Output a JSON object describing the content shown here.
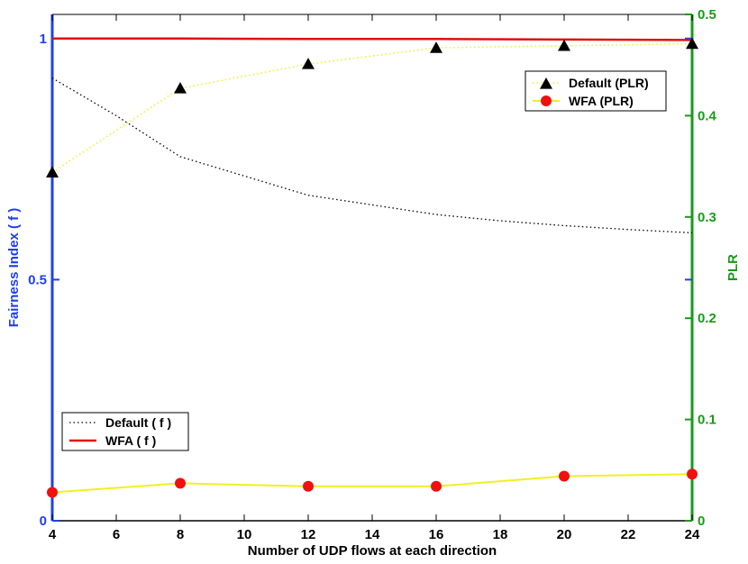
{
  "chart_data": {
    "type": "line",
    "xlabel": "Number of UDP flows at each direction",
    "ylabel_left": "Fairness Index ( f )",
    "ylabel_right": "PLR",
    "x_ticks": [
      4,
      6,
      8,
      10,
      12,
      14,
      16,
      18,
      20,
      22,
      24
    ],
    "xlim": [
      4,
      24
    ],
    "ylim_left": [
      0,
      1.05
    ],
    "ylim_right": [
      0,
      0.5
    ],
    "y_left_ticks": [
      0,
      0.5,
      1
    ],
    "y_left_tick_labels": [
      "0",
      "0.5",
      "1"
    ],
    "y_right_ticks": [
      0,
      0.1,
      0.2,
      0.3,
      0.4,
      0.5
    ],
    "y_right_tick_labels": [
      "0",
      "0.1",
      "0.2",
      "0.3",
      "0.4",
      "0.5"
    ],
    "grid": false,
    "colors": {
      "left_axis": "#1f3ff0",
      "right_axis": "#1a9a1a",
      "default_f": "#000000",
      "wfa_f": "#e01010",
      "plr_line": "#f0f020",
      "default_plr_marker": "#000000",
      "wfa_plr_marker": "#f01010"
    },
    "series": [
      {
        "name": "Default ( f )",
        "axis": "left",
        "style": "dotted",
        "x": [
          4,
          6,
          8,
          10,
          12,
          14,
          16,
          18,
          20,
          22,
          24
        ],
        "values": [
          0.918,
          0.84,
          0.755,
          0.715,
          0.675,
          0.655,
          0.635,
          0.622,
          0.612,
          0.604,
          0.597
        ]
      },
      {
        "name": "WFA ( f )",
        "axis": "left",
        "style": "solid",
        "x": [
          4,
          8,
          12,
          16,
          20,
          24
        ],
        "values": [
          1.0,
          1.0,
          0.999,
          0.999,
          0.998,
          0.997
        ]
      },
      {
        "name": "Default (PLR)",
        "axis": "right",
        "style": "dotted",
        "marker": "triangle",
        "x": [
          4,
          8,
          12,
          16,
          20,
          24
        ],
        "values": [
          0.344,
          0.427,
          0.451,
          0.467,
          0.469,
          0.471
        ]
      },
      {
        "name": "WFA (PLR)",
        "axis": "right",
        "style": "solid",
        "marker": "circle",
        "x": [
          4,
          8,
          12,
          16,
          20,
          24
        ],
        "values": [
          0.028,
          0.037,
          0.034,
          0.034,
          0.044,
          0.046
        ]
      }
    ],
    "legends": [
      {
        "placement": "upper-right",
        "entries": [
          "Default (PLR)",
          "WFA (PLR)"
        ]
      },
      {
        "placement": "lower-left",
        "entries": [
          "Default ( f )",
          "WFA ( f )"
        ]
      }
    ]
  }
}
